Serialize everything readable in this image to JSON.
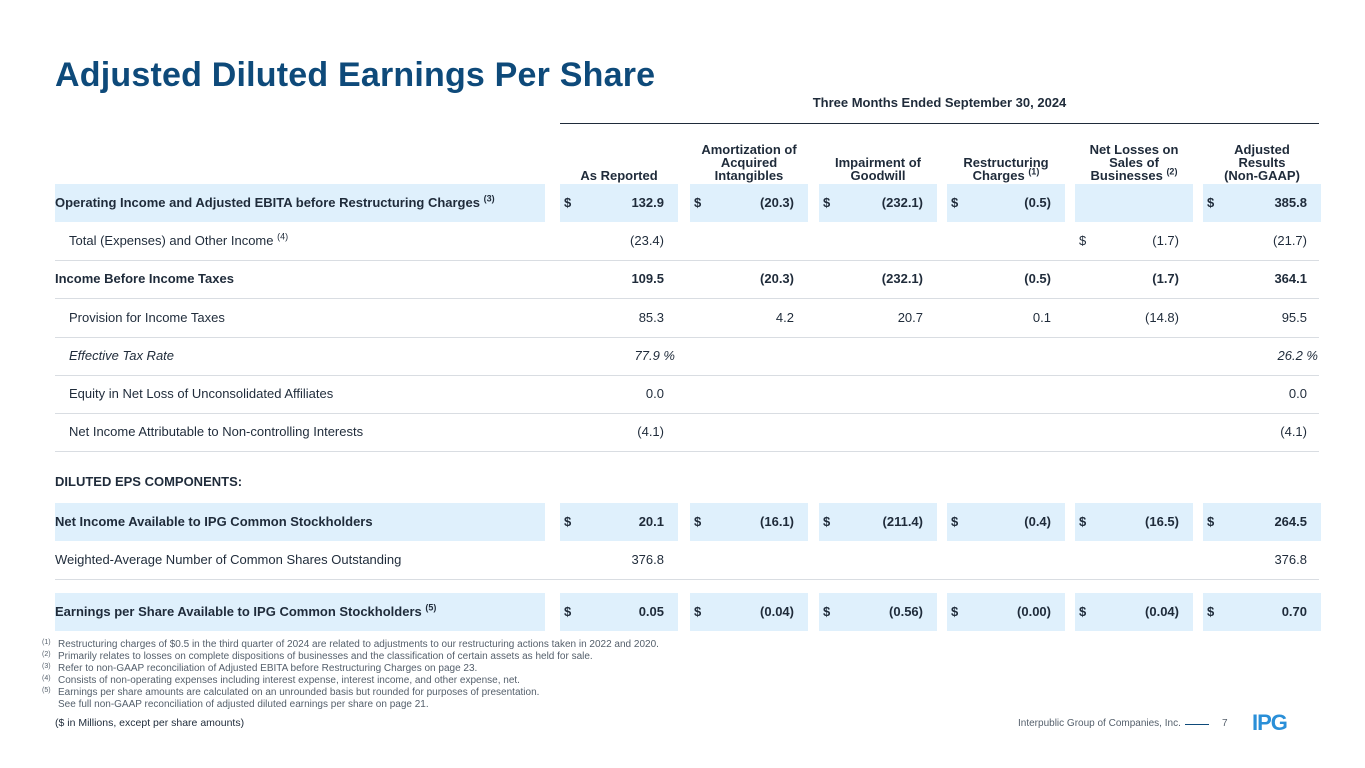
{
  "title": "Adjusted Diluted Earnings Per Share",
  "period": "Three Months Ended September 30, 2024",
  "columns": [
    {
      "lines": [
        "As Reported"
      ],
      "sup": ""
    },
    {
      "lines": [
        "Amortization of",
        "Acquired",
        "Intangibles"
      ],
      "sup": ""
    },
    {
      "lines": [
        "Impairment of",
        "Goodwill"
      ],
      "sup": ""
    },
    {
      "lines": [
        "Restructuring",
        "Charges"
      ],
      "sup": "(1)"
    },
    {
      "lines": [
        "Net Losses on",
        "Sales of",
        "Businesses"
      ],
      "sup": "(2)"
    },
    {
      "lines": [
        "Adjusted",
        "Results",
        "(Non-GAAP)"
      ],
      "sup": ""
    }
  ],
  "rows": [
    {
      "label": "Operating Income and Adjusted EBITA before Restructuring Charges",
      "sup": "(3)",
      "style": "bold-hl",
      "cells": [
        [
          "$",
          "132.9"
        ],
        [
          "$",
          "(20.3)"
        ],
        [
          "$",
          "(232.1)"
        ],
        [
          "$",
          "(0.5)"
        ],
        [
          "",
          ""
        ],
        [
          "$",
          "385.8"
        ]
      ]
    },
    {
      "label": "Total (Expenses) and Other Income",
      "sup": "(4)",
      "style": "indent",
      "cells": [
        [
          "",
          "(23.4)"
        ],
        [
          "",
          ""
        ],
        [
          "",
          ""
        ],
        [
          "",
          ""
        ],
        [
          "$",
          "(1.7)"
        ],
        [
          "",
          "(21.7)"
        ]
      ]
    },
    {
      "label": "Income Before Income Taxes",
      "sup": "",
      "style": "bold",
      "cells": [
        [
          "",
          "109.5"
        ],
        [
          "",
          "(20.3)"
        ],
        [
          "",
          "(232.1)"
        ],
        [
          "",
          "(0.5)"
        ],
        [
          "",
          "(1.7)"
        ],
        [
          "",
          "364.1"
        ]
      ]
    },
    {
      "label": "Provision for Income Taxes",
      "sup": "",
      "style": "indent",
      "cells": [
        [
          "",
          "85.3"
        ],
        [
          "",
          "4.2"
        ],
        [
          "",
          "20.7"
        ],
        [
          "",
          "0.1"
        ],
        [
          "",
          "(14.8)"
        ],
        [
          "",
          "95.5"
        ]
      ]
    },
    {
      "label": "Effective Tax Rate",
      "sup": "",
      "style": "italic",
      "cells": [
        [
          "",
          "77.9  %"
        ],
        [
          "",
          ""
        ],
        [
          "",
          ""
        ],
        [
          "",
          ""
        ],
        [
          "",
          ""
        ],
        [
          "",
          "26.2  %"
        ]
      ]
    },
    {
      "label": "Equity in Net Loss of Unconsolidated Affiliates",
      "sup": "",
      "style": "indent",
      "cells": [
        [
          "",
          "0.0"
        ],
        [
          "",
          ""
        ],
        [
          "",
          ""
        ],
        [
          "",
          ""
        ],
        [
          "",
          ""
        ],
        [
          "",
          "0.0"
        ]
      ]
    },
    {
      "label": "Net Income Attributable to Non-controlling Interests",
      "sup": "",
      "style": "indent",
      "cells": [
        [
          "",
          "(4.1)"
        ],
        [
          "",
          ""
        ],
        [
          "",
          ""
        ],
        [
          "",
          ""
        ],
        [
          "",
          ""
        ],
        [
          "",
          "(4.1)"
        ]
      ]
    }
  ],
  "section_label": "DILUTED EPS COMPONENTS:",
  "eps_rows": [
    {
      "label": "Net Income Available to IPG Common Stockholders",
      "sup": "",
      "style": "bold-hl",
      "cells": [
        [
          "$",
          "20.1"
        ],
        [
          "$",
          "(16.1)"
        ],
        [
          "$",
          "(211.4)"
        ],
        [
          "$",
          "(0.4)"
        ],
        [
          "$",
          "(16.5)"
        ],
        [
          "$",
          "264.5"
        ]
      ]
    },
    {
      "label": "Weighted-Average Number of Common Shares Outstanding",
      "sup": "",
      "style": "plain",
      "cells": [
        [
          "",
          "376.8"
        ],
        [
          "",
          ""
        ],
        [
          "",
          ""
        ],
        [
          "",
          ""
        ],
        [
          "",
          ""
        ],
        [
          "",
          "376.8"
        ]
      ]
    },
    {
      "label": "Earnings per Share Available to IPG Common Stockholders",
      "sup": "(5)",
      "style": "bold-hl",
      "cells": [
        [
          "$",
          "0.05"
        ],
        [
          "$",
          "(0.04)"
        ],
        [
          "$",
          "(0.56)"
        ],
        [
          "$",
          "(0.00)"
        ],
        [
          "$",
          "(0.04)"
        ],
        [
          "$",
          "0.70"
        ]
      ]
    }
  ],
  "footnotes": [
    {
      "mark": "(1)",
      "text": "Restructuring charges of $0.5 in the third quarter of 2024 are related to adjustments to our restructuring actions taken in 2022 and 2020."
    },
    {
      "mark": "(2)",
      "text": "Primarily relates to losses on complete dispositions of businesses and the classification of certain assets as held for sale."
    },
    {
      "mark": "(3)",
      "text": "Refer to non-GAAP reconciliation of Adjusted EBITA before Restructuring Charges on page 23."
    },
    {
      "mark": "(4)",
      "text": "Consists of non-operating expenses including interest expense, interest income, and other expense, net."
    },
    {
      "mark": "(5)",
      "text": "Earnings per share amounts are calculated on an unrounded basis but rounded for purposes of presentation."
    },
    {
      "mark": "",
      "text": "See full non-GAAP reconciliation of adjusted diluted earnings per share on page 21."
    }
  ],
  "units_note": "($ in Millions, except per share amounts)",
  "footer": {
    "company": "Interpublic Group of Companies, Inc.",
    "page": "7",
    "logo_text": "IPG"
  },
  "colors": {
    "brand": "#0e4a7a",
    "highlight": "#dff0fc"
  }
}
